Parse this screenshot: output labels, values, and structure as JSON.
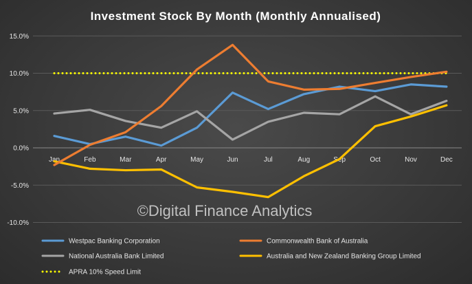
{
  "chart_data": {
    "type": "line",
    "title": "Investment Stock By Month (Monthly Annualised)",
    "categories": [
      "Jan",
      "Feb",
      "Mar",
      "Apr",
      "May",
      "Jun",
      "Jul",
      "Aug",
      "Sep",
      "Oct",
      "Nov",
      "Dec"
    ],
    "ylim": [
      -10,
      15
    ],
    "yticks": [
      {
        "value": 15,
        "label": "15.0%"
      },
      {
        "value": 10,
        "label": "10.0%"
      },
      {
        "value": 5,
        "label": "5.0%"
      },
      {
        "value": 0,
        "label": "0.0%"
      },
      {
        "value": -5,
        "label": "-5.0%"
      },
      {
        "value": -10,
        "label": "-10.0%"
      }
    ],
    "grid": true,
    "legend": "bottom",
    "series": [
      {
        "name": "Westpac Banking Corporation",
        "color": "#5b9bd5",
        "style": "solid",
        "values": [
          1.6,
          0.5,
          1.5,
          0.3,
          2.7,
          7.4,
          5.2,
          7.2,
          8.2,
          7.6,
          8.5,
          8.2
        ]
      },
      {
        "name": "Commonwealth Bank of Australia",
        "color": "#ed7d31",
        "style": "solid",
        "values": [
          -2.3,
          0.4,
          2.1,
          5.6,
          10.5,
          13.8,
          8.9,
          7.8,
          7.9,
          8.7,
          9.5,
          10.2
        ]
      },
      {
        "name": "National Australia Bank Limited",
        "color": "#a5a5a5",
        "style": "solid",
        "values": [
          4.6,
          5.1,
          3.6,
          2.7,
          4.9,
          1.1,
          3.5,
          4.7,
          4.5,
          6.9,
          4.5,
          6.3
        ]
      },
      {
        "name": "Australia and New Zealand Banking Group Limited",
        "color": "#ffc000",
        "style": "solid",
        "values": [
          -1.8,
          -2.8,
          -3.0,
          -2.9,
          -5.3,
          -5.9,
          -6.6,
          -3.8,
          -1.5,
          2.9,
          4.2,
          5.7
        ]
      },
      {
        "name": "APRA 10% Speed Limit",
        "color": "#ffff00",
        "style": "dotted",
        "values": [
          10,
          10,
          10,
          10,
          10,
          10,
          10,
          10,
          10,
          10,
          10,
          10
        ]
      }
    ],
    "watermark": "©Digital Finance Analytics"
  }
}
